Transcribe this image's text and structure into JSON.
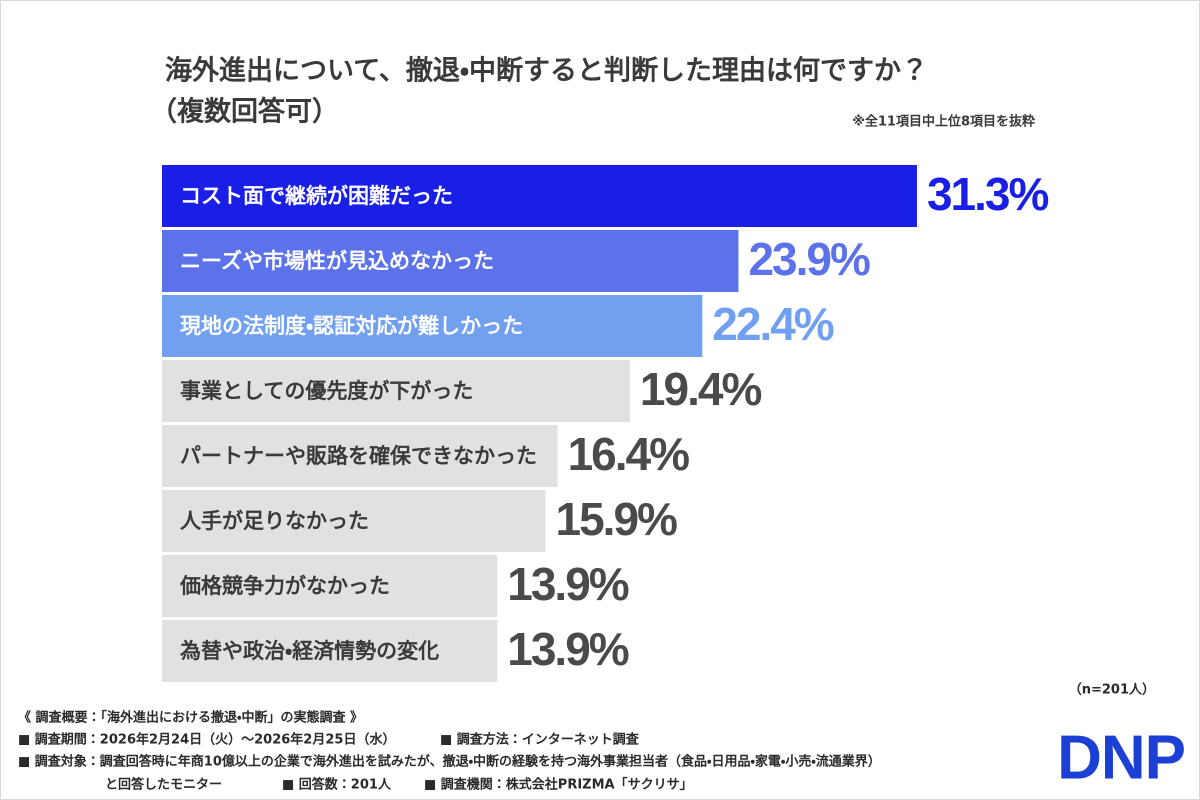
{
  "chart_data": {
    "type": "bar",
    "orientation": "horizontal",
    "title": "海外進出について、撤退・中断すると判断した理由は何ですか？",
    "subtitle": "（複数回答可）",
    "note": "※全11項目中上位8項目を抜粋",
    "sample_size": "（n=201人）",
    "categories": [
      "コスト面で継続が困難だった",
      "ニーズや市場性が見込めなかった",
      "現地の法制度・認証対応が難しかった",
      "事業としての優先度が下がった",
      "パートナーや販路を確保できなかった",
      "人手が足りなかった",
      "価格競争力がなかった",
      "為替や政治・経済情勢の変化"
    ],
    "values": [
      31.3,
      23.9,
      22.4,
      19.4,
      16.4,
      15.9,
      13.9,
      13.9
    ],
    "value_labels": [
      "31.3%",
      "23.9%",
      "22.4%",
      "19.4%",
      "16.4%",
      "15.9%",
      "13.9%",
      "13.9%"
    ],
    "colors": [
      "#1a1fe6",
      "#5b72ea",
      "#72a0f1",
      "#e3e0e1",
      "#e3e0e1",
      "#e3e0e1",
      "#e3e0e1",
      "#e3e0e1"
    ],
    "category_text_colors": [
      "#ffffff",
      "#ffffff",
      "#ffffff",
      "#3a3a3a",
      "#3a3a3a",
      "#3a3a3a",
      "#3a3a3a",
      "#3a3a3a"
    ],
    "value_label_colors": [
      "#1a1fe6",
      "#5b72ea",
      "#72a0f1",
      "#4a4a4a",
      "#4a4a4a",
      "#4a4a4a",
      "#4a4a4a",
      "#4a4a4a"
    ]
  },
  "footer": {
    "heading": "《 調査概要：「海外進出における撤退・中断」の実態調査 》",
    "period": "■ 調査期間：2026年2月24日（火）～2026年2月25日（水）",
    "method": "■ 調査方法：インターネット調査",
    "target": "■ 調査対象：調査回答時に年商10億以上の企業で海外進出を試みたが、撤退・中断の経験を持つ海外事業担当者（食品・日用品・家電・小売・流通業界）",
    "target_cont": "と回答したモニター",
    "responses": "■ 回答数：201人",
    "agency": "■ 調査機関：株式会社PRIZMA「サクリサ」"
  },
  "logo": "DNP"
}
